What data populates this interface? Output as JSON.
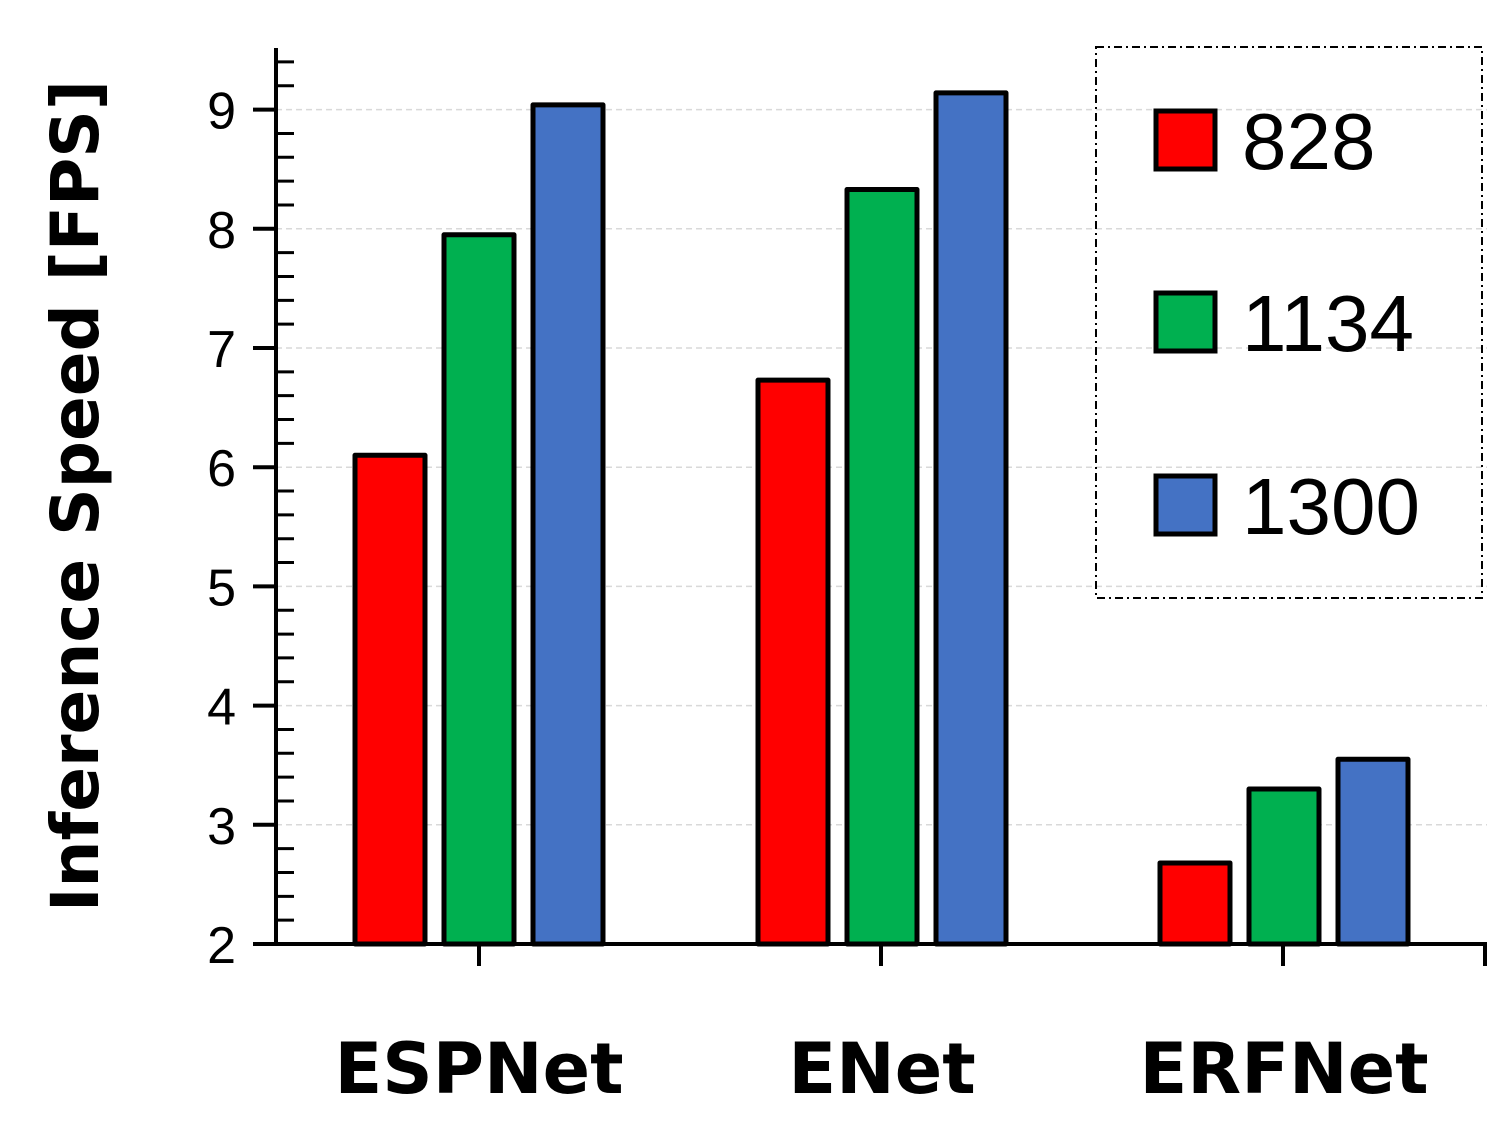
{
  "chart_data": {
    "type": "bar",
    "title": "",
    "xlabel": "",
    "ylabel": "Inference Speed [FPS]",
    "ylim": [
      2,
      9.5
    ],
    "yticks": [
      "2",
      "3",
      "4",
      "5",
      "6",
      "7",
      "8",
      "9"
    ],
    "grid": true,
    "legend_position": "top-right",
    "categories": [
      "ESPNet",
      "ENet",
      "ERFNet"
    ],
    "series": [
      {
        "name": "828",
        "color": "#ff0000",
        "values": [
          6.1,
          6.73,
          2.68
        ]
      },
      {
        "name": "1134",
        "color": "#00b050",
        "values": [
          7.95,
          8.33,
          3.3
        ]
      },
      {
        "name": "1300",
        "color": "#4472c4",
        "values": [
          9.04,
          9.14,
          3.55
        ]
      }
    ]
  }
}
